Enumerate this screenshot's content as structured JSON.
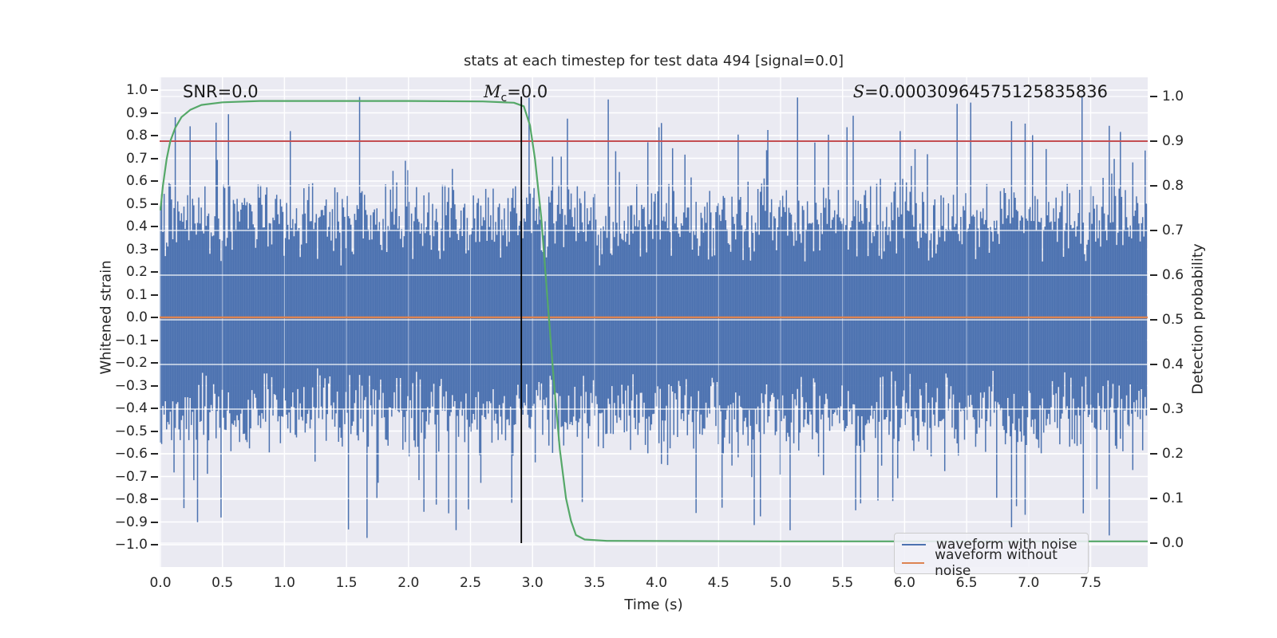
{
  "chart_data": {
    "type": "line",
    "title": "stats at each timestep for test data 494 [signal=0.0]",
    "xlabel": "Time (s)",
    "ylabel_left": "Whitened strain",
    "ylabel_right": "Detection probability",
    "xlim": [
      0.0,
      7.96
    ],
    "ylim_left": [
      -1.1,
      1.06
    ],
    "ylim_right": [
      -0.054,
      1.043
    ],
    "grid": true,
    "legend_position": "lower right",
    "xticks": [
      0.0,
      0.5,
      1.0,
      1.5,
      2.0,
      2.5,
      3.0,
      3.5,
      4.0,
      4.5,
      5.0,
      5.5,
      6.0,
      6.5,
      7.0,
      7.5
    ],
    "yticks_left": [
      1.0,
      0.9,
      0.8,
      0.7,
      0.6,
      0.5,
      0.4,
      0.3,
      0.2,
      0.1,
      0.0,
      -0.1,
      -0.2,
      -0.3,
      -0.4,
      -0.5,
      -0.6,
      -0.7,
      -0.8,
      -0.9,
      -1.0
    ],
    "yticks_right": [
      1.0,
      0.9,
      0.8,
      0.7,
      0.6,
      0.5,
      0.4,
      0.3,
      0.2,
      0.1,
      0.0
    ],
    "annotations": {
      "snr": {
        "text": "SNR=0.0"
      },
      "chirp_mass": {
        "pre": "M",
        "sub": "c",
        "post": "=0.0"
      },
      "stat": {
        "pre": "S",
        "post": "=0.00030964575125835836"
      }
    },
    "detection_probability_curve": {
      "name": "detection probability",
      "color": "#55a868",
      "points": [
        [
          0.0,
          0.745
        ],
        [
          0.02,
          0.8
        ],
        [
          0.05,
          0.86
        ],
        [
          0.08,
          0.9
        ],
        [
          0.12,
          0.93
        ],
        [
          0.17,
          0.954
        ],
        [
          0.24,
          0.97
        ],
        [
          0.33,
          0.981
        ],
        [
          0.5,
          0.987
        ],
        [
          0.8,
          0.99
        ],
        [
          2.0,
          0.99
        ],
        [
          2.6,
          0.989
        ],
        [
          2.85,
          0.986
        ],
        [
          2.93,
          0.978
        ],
        [
          2.98,
          0.935
        ],
        [
          3.02,
          0.86
        ],
        [
          3.07,
          0.73
        ],
        [
          3.12,
          0.55
        ],
        [
          3.17,
          0.37
        ],
        [
          3.22,
          0.21
        ],
        [
          3.27,
          0.1
        ],
        [
          3.31,
          0.05
        ],
        [
          3.35,
          0.018
        ],
        [
          3.42,
          0.008
        ],
        [
          3.6,
          0.005
        ],
        [
          5.0,
          0.004
        ],
        [
          7.96,
          0.004
        ]
      ]
    },
    "threshold_line": {
      "value": 0.9,
      "axis": "right",
      "color": "#c44e52"
    },
    "clean_waveform_line": {
      "value": 0.0,
      "axis": "left",
      "color": "#dd8452"
    },
    "event_marker_line": {
      "x": 2.91,
      "color": "#000000"
    },
    "noisy_waveform": {
      "color": "#4c72b0",
      "seed": 494,
      "typical_envelope": 0.45,
      "max_spike": 0.975,
      "min_spike": -0.93,
      "description": "dense whitened-noise strain filling approx ±0.5 with sparse spikes to ±0.97"
    },
    "legend": {
      "entries": [
        {
          "label": "waveform with noise",
          "color": "#4c72b0"
        },
        {
          "label": "waveform without noise",
          "color": "#dd8452"
        }
      ]
    },
    "style": {
      "axes_background": "#eaeaf2",
      "grid_color": "#ffffff",
      "text_color": "#262626"
    }
  }
}
